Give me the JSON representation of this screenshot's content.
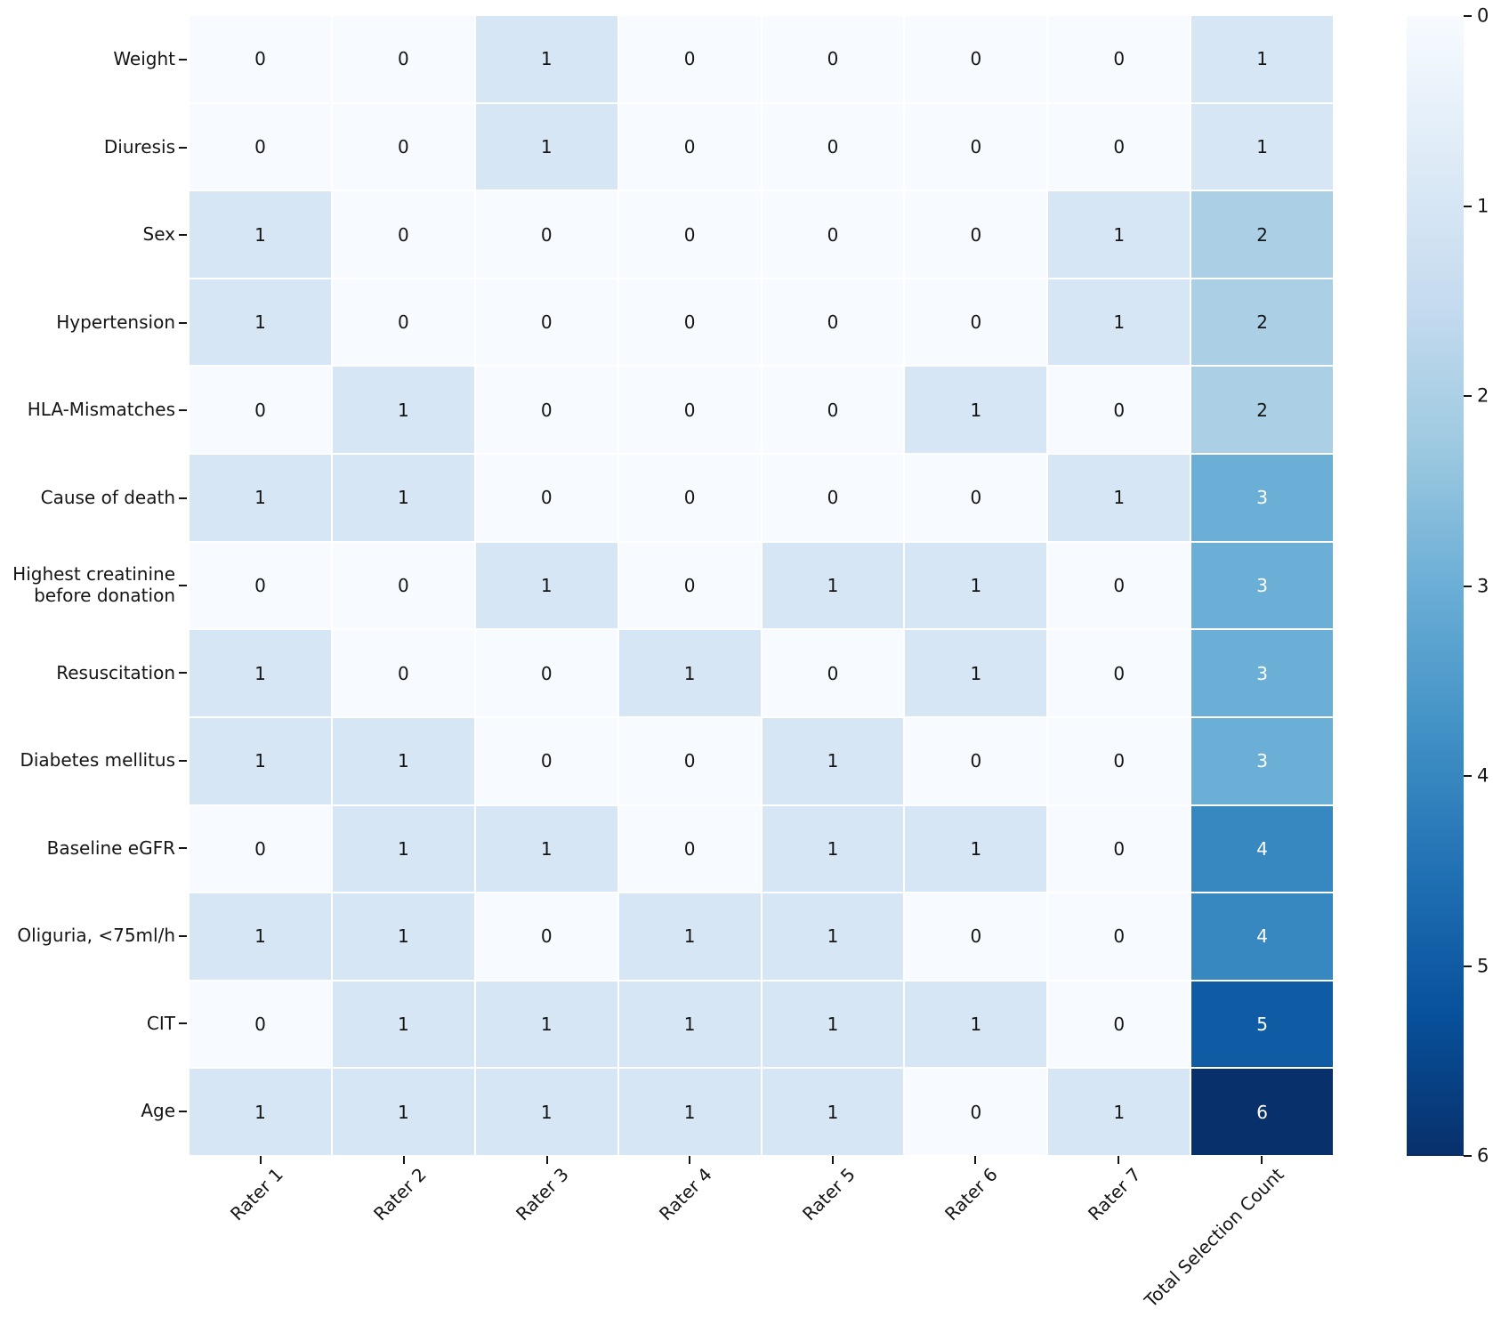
{
  "chart_data": {
    "type": "heatmap",
    "title": "",
    "xlabel": "",
    "ylabel": "",
    "x_tick_labels": [
      "Rater 1",
      "Rater 2",
      "Rater 3",
      "Rater 4",
      "Rater 5",
      "Rater 6",
      "Rater 7",
      "Total Selection Count"
    ],
    "y_tick_labels": [
      "Weight",
      "Diuresis",
      "Sex",
      "Hypertension",
      "HLA-Mismatches",
      "Cause of death",
      "Highest creatinine\nbefore donation",
      "Resuscitation",
      "Diabetes mellitus",
      "Baseline eGFR",
      "Oliguria, <75ml/h",
      "CIT",
      "Age"
    ],
    "values": [
      [
        0,
        0,
        1,
        0,
        0,
        0,
        0,
        1
      ],
      [
        0,
        0,
        1,
        0,
        0,
        0,
        0,
        1
      ],
      [
        1,
        0,
        0,
        0,
        0,
        0,
        1,
        2
      ],
      [
        1,
        0,
        0,
        0,
        0,
        0,
        1,
        2
      ],
      [
        0,
        1,
        0,
        0,
        0,
        1,
        0,
        2
      ],
      [
        1,
        1,
        0,
        0,
        0,
        0,
        1,
        3
      ],
      [
        0,
        0,
        1,
        0,
        1,
        1,
        0,
        3
      ],
      [
        1,
        0,
        0,
        1,
        0,
        1,
        0,
        3
      ],
      [
        1,
        1,
        0,
        0,
        1,
        0,
        0,
        3
      ],
      [
        0,
        1,
        1,
        0,
        1,
        1,
        0,
        4
      ],
      [
        1,
        1,
        0,
        1,
        1,
        0,
        0,
        4
      ],
      [
        0,
        1,
        1,
        1,
        1,
        1,
        0,
        5
      ],
      [
        1,
        1,
        1,
        1,
        1,
        0,
        1,
        6
      ]
    ],
    "vmin": 0,
    "vmax": 6,
    "colorbar_ticks": [
      "0",
      "1",
      "2",
      "3",
      "4",
      "5",
      "6"
    ],
    "colorbar_position": "right",
    "colorbar_direction": "min-at-top",
    "colormap_name": "Blues",
    "colormap_stops": [
      "#f7fbff",
      "#deebf7",
      "#c6dbef",
      "#9ecae1",
      "#6baed6",
      "#4292c6",
      "#2171b5",
      "#08519c",
      "#08306b"
    ],
    "annotation_color_dark": "#151515",
    "annotation_color_light": "#ffffff",
    "grid_line_color": "#ffffff",
    "grid_on": true,
    "legend_position": "none"
  }
}
